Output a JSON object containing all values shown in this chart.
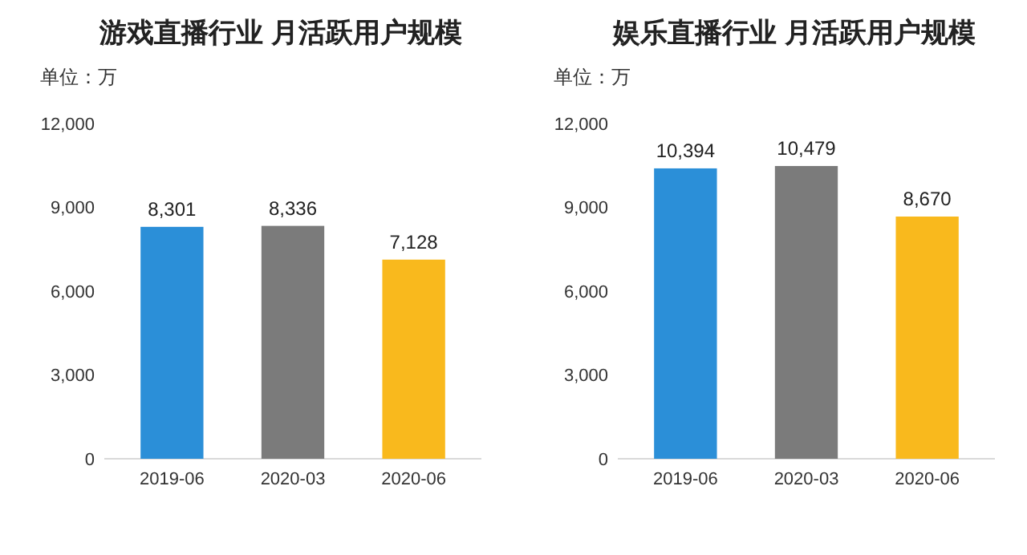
{
  "chart_data": [
    {
      "type": "bar",
      "title": "游戏直播行业 月活跃用户规模",
      "ylabel": "单位：万",
      "categories": [
        "2019-06",
        "2020-03",
        "2020-06"
      ],
      "values": [
        8301,
        8336,
        7128
      ],
      "colors": [
        "#2b8fd8",
        "#7b7b7b",
        "#f9b91d"
      ],
      "ylim": [
        0,
        12000
      ],
      "yticks": [
        {
          "value": 0,
          "label": "0"
        },
        {
          "value": 3000,
          "label": "3,000"
        },
        {
          "value": 6000,
          "label": "6,000"
        },
        {
          "value": 9000,
          "label": "9,000"
        },
        {
          "value": 12000,
          "label": "12,000"
        }
      ],
      "data_labels": true,
      "value_labels": [
        "8,301",
        "8,336",
        "7,128"
      ]
    },
    {
      "type": "bar",
      "title": "娱乐直播行业 月活跃用户规模",
      "ylabel": "单位：万",
      "categories": [
        "2019-06",
        "2020-03",
        "2020-06"
      ],
      "values": [
        10394,
        10479,
        8670
      ],
      "colors": [
        "#2b8fd8",
        "#7b7b7b",
        "#f9b91d"
      ],
      "ylim": [
        0,
        12000
      ],
      "yticks": [
        {
          "value": 0,
          "label": "0"
        },
        {
          "value": 3000,
          "label": "3,000"
        },
        {
          "value": 6000,
          "label": "6,000"
        },
        {
          "value": 9000,
          "label": "9,000"
        },
        {
          "value": 12000,
          "label": "12,000"
        }
      ],
      "data_labels": true,
      "value_labels": [
        "10,394",
        "10,479",
        "8,670"
      ]
    }
  ]
}
